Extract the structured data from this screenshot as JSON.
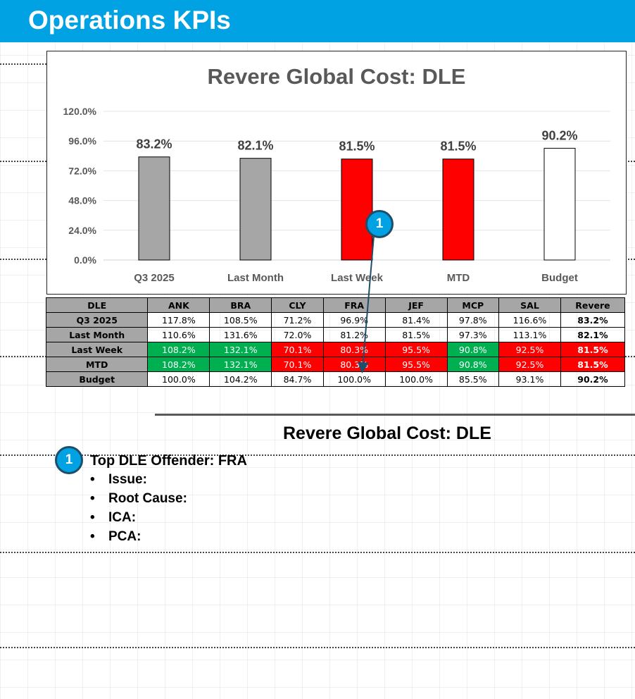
{
  "header": {
    "title": "Operations KPIs"
  },
  "chart_data": {
    "type": "bar",
    "title": "Revere Global Cost:  DLE",
    "categories": [
      "Q3 2025",
      "Last Month",
      "Last Week",
      "MTD",
      "Budget"
    ],
    "values": [
      83.2,
      82.1,
      81.5,
      81.5,
      90.2
    ],
    "data_labels": [
      "83.2%",
      "82.1%",
      "81.5%",
      "81.5%",
      "90.2%"
    ],
    "bar_colors": [
      "#a6a6a6",
      "#a6a6a6",
      "#ff0000",
      "#ff0000",
      "#ffffff"
    ],
    "ylim": [
      0,
      120
    ],
    "yticks": [
      "0.0%",
      "24.0%",
      "48.0%",
      "72.0%",
      "96.0%",
      "120.0%"
    ],
    "ytick_values": [
      0,
      24,
      48,
      72,
      96,
      120
    ],
    "grid": true,
    "xlabel": "",
    "ylabel": ""
  },
  "table": {
    "headers": [
      "DLE",
      "ANK",
      "BRA",
      "CLY",
      "FRA",
      "JEF",
      "MCP",
      "SAL",
      "Revere"
    ],
    "rows": [
      {
        "label": "Q3 2025",
        "cells": [
          "117.8%",
          "108.5%",
          "71.2%",
          "96.9%",
          "81.4%",
          "97.8%",
          "116.6%",
          "83.2%"
        ],
        "colors": [
          "",
          "",
          "",
          "",
          "",
          "",
          "",
          ""
        ]
      },
      {
        "label": "Last Month",
        "cells": [
          "110.6%",
          "131.6%",
          "72.0%",
          "81.2%",
          "81.5%",
          "97.3%",
          "113.1%",
          "82.1%"
        ],
        "colors": [
          "",
          "",
          "",
          "",
          "",
          "",
          "",
          ""
        ]
      },
      {
        "label": "Last Week",
        "cells": [
          "108.2%",
          "132.1%",
          "70.1%",
          "80.3%",
          "95.5%",
          "90.8%",
          "92.5%",
          "81.5%"
        ],
        "colors": [
          "green",
          "green",
          "red",
          "red",
          "red",
          "green",
          "red",
          "red"
        ]
      },
      {
        "label": "MTD",
        "cells": [
          "108.2%",
          "132.1%",
          "70.1%",
          "80.3%",
          "95.5%",
          "90.8%",
          "92.5%",
          "81.5%"
        ],
        "colors": [
          "green",
          "green",
          "red",
          "red",
          "red",
          "green",
          "red",
          "red"
        ]
      },
      {
        "label": "Budget",
        "cells": [
          "100.0%",
          "104.2%",
          "84.7%",
          "100.0%",
          "100.0%",
          "85.5%",
          "93.1%",
          "90.2%"
        ],
        "colors": [
          "",
          "",
          "",
          "",
          "",
          "",
          "",
          ""
        ]
      }
    ]
  },
  "callout": {
    "number": "1"
  },
  "section": {
    "title": "Revere Global Cost: DLE"
  },
  "notes": {
    "number": "1",
    "heading": "Top DLE Offender: FRA",
    "items": [
      "Issue:",
      "Root Cause:",
      "ICA:",
      "PCA:"
    ],
    "bullet": "•"
  }
}
